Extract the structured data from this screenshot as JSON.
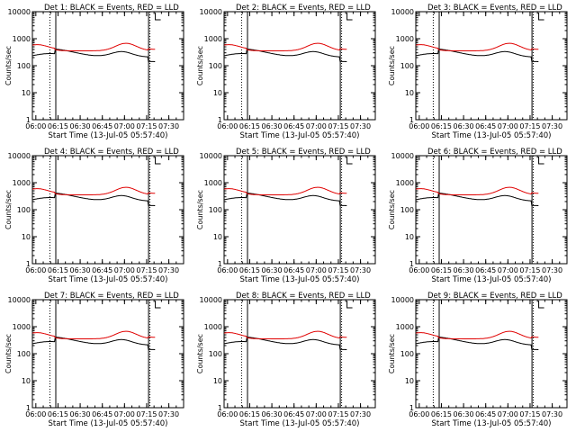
{
  "figure": {
    "ylabel": "Counts/sec",
    "xlabel": "Start Time (13-Jul-05 05:57:40)",
    "title_suffix": ": BLACK = Events, RED = LLD",
    "colors": {
      "events": "#000000",
      "lld": "#e00000",
      "background": "#ffffff"
    }
  },
  "chart_data": [
    {
      "type": "line",
      "title": "Det 1: BLACK = Events, RED = LLD",
      "series": [
        {
          "name": "BLACK = Events",
          "color": "#000000"
        },
        {
          "name": "RED = LLD",
          "color": "#e00000"
        }
      ],
      "yscale": "log",
      "ylim": [
        1,
        10000
      ],
      "xlim": [
        "05:57:40",
        "07:40"
      ],
      "x_ticks": [
        "06:00",
        "06:15",
        "06:30",
        "06:45",
        "07:00",
        "07:15",
        "07:30"
      ],
      "y_ticks": [
        "1",
        "10",
        "100",
        "1000",
        "10000"
      ]
    },
    {
      "type": "line",
      "title": "Det 2: BLACK = Events, RED = LLD",
      "series": [
        {
          "name": "BLACK = Events",
          "color": "#000000"
        },
        {
          "name": "RED = LLD",
          "color": "#e00000"
        }
      ],
      "yscale": "log",
      "ylim": [
        1,
        10000
      ],
      "xlim": [
        "05:57:40",
        "07:40"
      ],
      "x_ticks": [
        "06:00",
        "06:15",
        "06:30",
        "06:45",
        "07:00",
        "07:15",
        "07:30"
      ],
      "y_ticks": [
        "1",
        "10",
        "100",
        "1000",
        "10000"
      ]
    },
    {
      "type": "line",
      "title": "Det 3: BLACK = Events, RED = LLD",
      "series": [
        {
          "name": "BLACK = Events",
          "color": "#000000"
        },
        {
          "name": "RED = LLD",
          "color": "#e00000"
        }
      ],
      "yscale": "log",
      "ylim": [
        1,
        10000
      ],
      "xlim": [
        "05:57:40",
        "07:40"
      ],
      "x_ticks": [
        "06:00",
        "06:15",
        "06:30",
        "06:45",
        "07:00",
        "07:15",
        "07:30"
      ],
      "y_ticks": [
        "1",
        "10",
        "100",
        "1000",
        "10000"
      ]
    },
    {
      "type": "line",
      "title": "Det 4: BLACK = Events, RED = LLD",
      "series": [
        {
          "name": "BLACK = Events",
          "color": "#000000"
        },
        {
          "name": "RED = LLD",
          "color": "#e00000"
        }
      ],
      "yscale": "log",
      "ylim": [
        1,
        10000
      ],
      "xlim": [
        "05:57:40",
        "07:40"
      ],
      "x_ticks": [
        "06:00",
        "06:15",
        "06:30",
        "06:45",
        "07:00",
        "07:15",
        "07:30"
      ],
      "y_ticks": [
        "1",
        "10",
        "100",
        "1000",
        "10000"
      ]
    },
    {
      "type": "line",
      "title": "Det 5: BLACK = Events, RED = LLD",
      "series": [
        {
          "name": "BLACK = Events",
          "color": "#000000"
        },
        {
          "name": "RED = LLD",
          "color": "#e00000"
        }
      ],
      "yscale": "log",
      "ylim": [
        1,
        10000
      ],
      "xlim": [
        "05:57:40",
        "07:40"
      ],
      "x_ticks": [
        "06:00",
        "06:15",
        "06:30",
        "06:45",
        "07:00",
        "07:15",
        "07:30"
      ],
      "y_ticks": [
        "1",
        "10",
        "100",
        "1000",
        "10000"
      ]
    },
    {
      "type": "line",
      "title": "Det 6: BLACK = Events, RED = LLD",
      "series": [
        {
          "name": "BLACK = Events",
          "color": "#000000"
        },
        {
          "name": "RED = LLD",
          "color": "#e00000"
        }
      ],
      "yscale": "log",
      "ylim": [
        1,
        10000
      ],
      "xlim": [
        "05:57:40",
        "07:40"
      ],
      "x_ticks": [
        "06:00",
        "06:15",
        "06:30",
        "06:45",
        "07:00",
        "07:15",
        "07:30"
      ],
      "y_ticks": [
        "1",
        "10",
        "100",
        "1000",
        "10000"
      ]
    },
    {
      "type": "line",
      "title": "Det 7: BLACK = Events, RED = LLD",
      "series": [
        {
          "name": "BLACK = Events",
          "color": "#000000"
        },
        {
          "name": "RED = LLD",
          "color": "#e00000"
        }
      ],
      "yscale": "log",
      "ylim": [
        1,
        10000
      ],
      "xlim": [
        "05:57:40",
        "07:40"
      ],
      "x_ticks": [
        "06:00",
        "06:15",
        "06:30",
        "06:45",
        "07:00",
        "07:15",
        "07:30"
      ],
      "y_ticks": [
        "1",
        "10",
        "100",
        "1000",
        "10000"
      ]
    },
    {
      "type": "line",
      "title": "Det 8: BLACK = Events, RED = LLD",
      "series": [
        {
          "name": "BLACK = Events",
          "color": "#000000"
        },
        {
          "name": "RED = LLD",
          "color": "#e00000"
        }
      ],
      "yscale": "log",
      "ylim": [
        1,
        10000
      ],
      "xlim": [
        "05:57:40",
        "07:40"
      ],
      "x_ticks": [
        "06:00",
        "06:15",
        "06:30",
        "06:45",
        "07:00",
        "07:15",
        "07:30"
      ],
      "y_ticks": [
        "1",
        "10",
        "100",
        "1000",
        "10000"
      ]
    },
    {
      "type": "line",
      "title": "Det 9: BLACK = Events, RED = LLD",
      "series": [
        {
          "name": "BLACK = Events",
          "color": "#000000"
        },
        {
          "name": "RED = LLD",
          "color": "#e00000"
        }
      ],
      "yscale": "log",
      "ylim": [
        1,
        10000
      ],
      "xlim": [
        "05:57:40",
        "07:40"
      ],
      "x_ticks": [
        "06:00",
        "06:15",
        "06:30",
        "06:45",
        "07:00",
        "07:15",
        "07:30"
      ],
      "y_ticks": [
        "1",
        "10",
        "100",
        "1000",
        "10000"
      ]
    }
  ]
}
